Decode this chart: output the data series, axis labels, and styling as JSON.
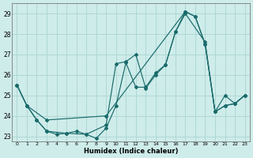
{
  "xlabel": "Humidex (Indice chaleur)",
  "background_color": "#ceecea",
  "grid_color": "#aed8d5",
  "line_color": "#1a6b6b",
  "xlim": [
    -0.5,
    23.5
  ],
  "ylim": [
    22.75,
    29.5
  ],
  "xticks": [
    0,
    1,
    2,
    3,
    4,
    5,
    6,
    7,
    8,
    9,
    10,
    11,
    12,
    13,
    14,
    15,
    16,
    17,
    18,
    19,
    20,
    21,
    22,
    23
  ],
  "yticks": [
    23,
    24,
    25,
    26,
    27,
    28,
    29
  ],
  "series1_x": [
    0,
    1,
    2,
    3,
    4,
    5,
    6,
    7,
    8,
    9,
    10,
    11,
    12,
    13,
    14,
    15,
    16,
    17,
    18,
    19,
    20,
    21,
    22,
    23
  ],
  "series1_y": [
    25.5,
    24.5,
    23.8,
    23.25,
    23.1,
    23.15,
    23.25,
    23.1,
    22.9,
    23.4,
    24.5,
    26.6,
    25.4,
    25.4,
    26.1,
    26.5,
    28.1,
    29.1,
    28.85,
    27.5,
    24.2,
    25.0,
    24.6,
    25.0
  ],
  "series2_x": [
    0,
    1,
    2,
    3,
    5,
    7,
    9,
    10,
    11,
    12,
    13,
    14,
    15,
    16,
    17,
    19,
    20,
    21,
    22,
    23
  ],
  "series2_y": [
    25.5,
    24.5,
    23.8,
    23.25,
    23.15,
    23.1,
    23.55,
    26.55,
    26.65,
    27.0,
    25.35,
    26.0,
    26.5,
    28.1,
    29.0,
    27.6,
    24.2,
    24.5,
    24.6,
    25.0
  ],
  "series3_x": [
    0,
    1,
    3,
    9,
    17,
    18,
    19,
    20,
    21,
    22,
    23
  ],
  "series3_y": [
    25.5,
    24.5,
    23.8,
    24.0,
    29.1,
    28.85,
    27.5,
    24.2,
    24.5,
    24.6,
    25.0
  ]
}
